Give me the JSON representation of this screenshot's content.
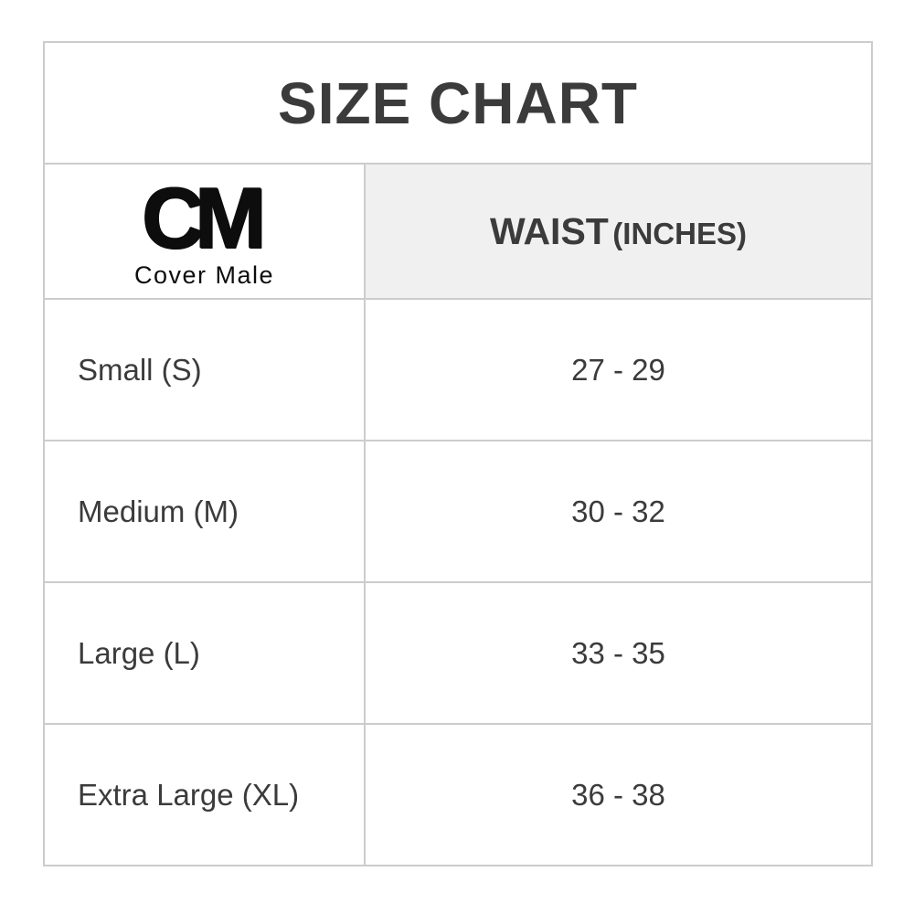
{
  "title": "SIZE CHART",
  "brand": {
    "initials": "CM",
    "name": "Cover Male"
  },
  "table": {
    "columns": [
      {
        "key": "size",
        "label": ""
      },
      {
        "key": "waist",
        "label_main": "WAIST",
        "label_sub": "(INCHES)"
      }
    ],
    "rows": [
      {
        "size": "Small (S)",
        "waist": "27 - 29"
      },
      {
        "size": "Medium (M)",
        "waist": "30 - 32"
      },
      {
        "size": "Large (L)",
        "waist": "33 - 35"
      },
      {
        "size": "Extra Large (XL)",
        "waist": "36 - 38"
      }
    ]
  },
  "colors": {
    "border": "#cccccc",
    "header_bg": "#f0f0f0",
    "text": "#3b3b3b",
    "logo": "#0d0d0d",
    "page_bg": "#ffffff"
  }
}
